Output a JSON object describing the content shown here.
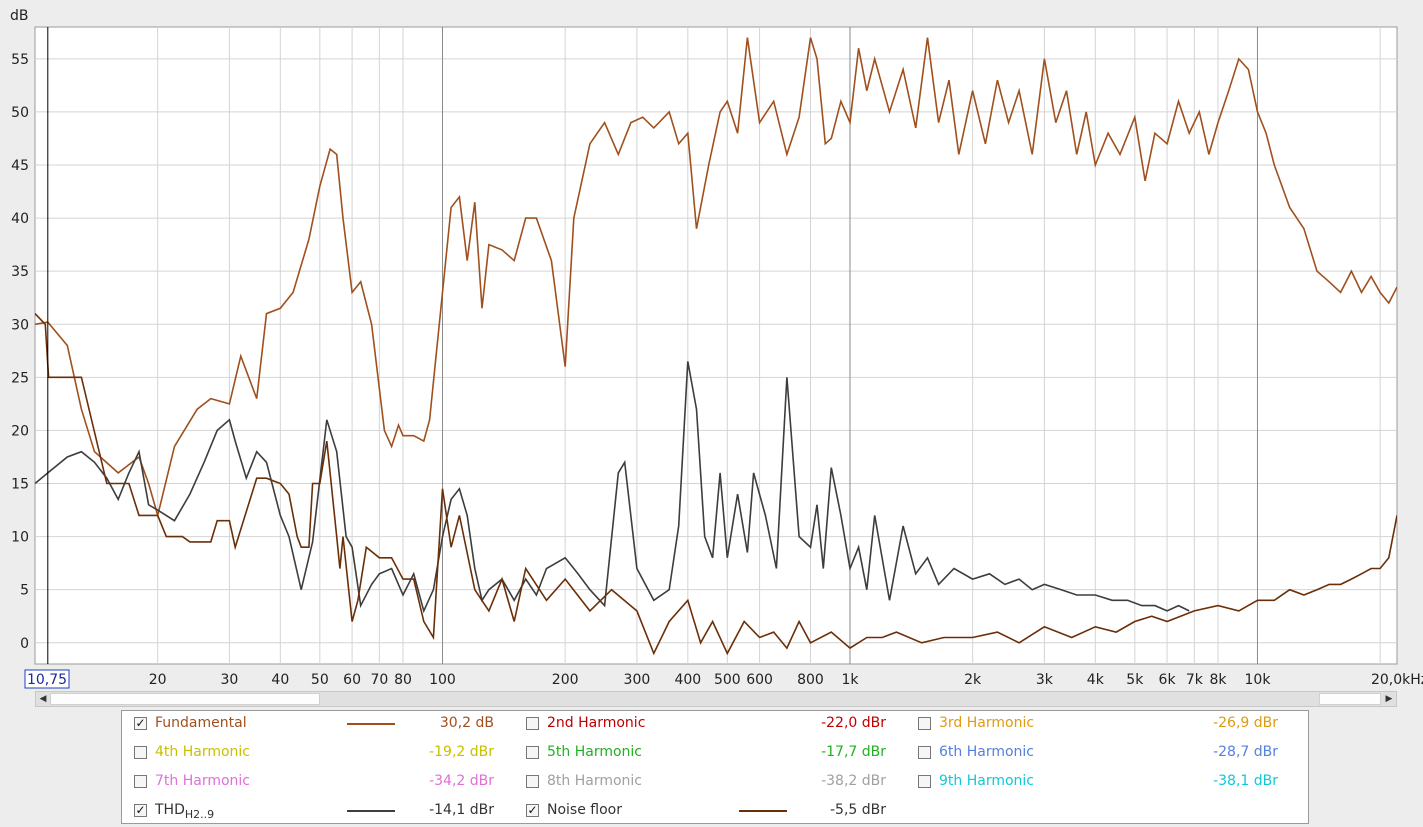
{
  "chart_data": {
    "type": "line",
    "ylabel": "dB",
    "xscale": "log",
    "xlim": [
      10,
      22000
    ],
    "ylim": [
      -2,
      58
    ],
    "x_ticks": [
      {
        "v": 20,
        "label": "20"
      },
      {
        "v": 30,
        "label": "30"
      },
      {
        "v": 40,
        "label": "40"
      },
      {
        "v": 50,
        "label": "50"
      },
      {
        "v": 60,
        "label": "60"
      },
      {
        "v": 70,
        "label": "70"
      },
      {
        "v": 80,
        "label": "80"
      },
      {
        "v": 100,
        "label": "100"
      },
      {
        "v": 200,
        "label": "200"
      },
      {
        "v": 300,
        "label": "300"
      },
      {
        "v": 400,
        "label": "400"
      },
      {
        "v": 500,
        "label": "500"
      },
      {
        "v": 600,
        "label": "600"
      },
      {
        "v": 800,
        "label": "800"
      },
      {
        "v": 1000,
        "label": "1k"
      },
      {
        "v": 2000,
        "label": "2k"
      },
      {
        "v": 3000,
        "label": "3k"
      },
      {
        "v": 4000,
        "label": "4k"
      },
      {
        "v": 5000,
        "label": "5k"
      },
      {
        "v": 6000,
        "label": "6k"
      },
      {
        "v": 7000,
        "label": "7k"
      },
      {
        "v": 8000,
        "label": "8k"
      },
      {
        "v": 10000,
        "label": "10k"
      },
      {
        "v": 20000,
        "label": "20,0kHz"
      }
    ],
    "y_ticks": [
      0,
      5,
      10,
      15,
      20,
      25,
      30,
      35,
      40,
      45,
      50,
      55
    ],
    "cursor": {
      "x": 10.75,
      "label": "10,75"
    },
    "grid": true,
    "series": [
      {
        "name": "Fundamental",
        "color": "#a0501e",
        "x": [
          10,
          10.75,
          12,
          13,
          14,
          16,
          18,
          19,
          20,
          22,
          25,
          27,
          30,
          32,
          35,
          37,
          40,
          43,
          47,
          50,
          53,
          55,
          57,
          60,
          63,
          67,
          72,
          75,
          78,
          80,
          85,
          90,
          93,
          100,
          105,
          110,
          115,
          120,
          125,
          130,
          140,
          150,
          160,
          170,
          185,
          200,
          210,
          230,
          250,
          270,
          290,
          310,
          330,
          360,
          380,
          400,
          420,
          450,
          480,
          500,
          530,
          560,
          600,
          650,
          700,
          750,
          800,
          830,
          870,
          900,
          950,
          1000,
          1050,
          1100,
          1150,
          1250,
          1350,
          1450,
          1550,
          1650,
          1750,
          1850,
          2000,
          2150,
          2300,
          2450,
          2600,
          2800,
          3000,
          3200,
          3400,
          3600,
          3800,
          4000,
          4300,
          4600,
          5000,
          5300,
          5600,
          6000,
          6400,
          6800,
          7200,
          7600,
          8000,
          8500,
          9000,
          9500,
          10000,
          10500,
          11000,
          12000,
          13000,
          14000,
          15000,
          16000,
          17000,
          18000,
          19000,
          20000,
          21000,
          22000
        ],
        "y": [
          30.0,
          30.2,
          28.0,
          22.0,
          18.0,
          16.0,
          17.5,
          15.0,
          12.0,
          18.5,
          22.0,
          23.0,
          22.5,
          27.0,
          23.0,
          31.0,
          31.5,
          33.0,
          38.0,
          43.0,
          46.5,
          46.0,
          40.0,
          33.0,
          34.0,
          30.0,
          20.0,
          18.5,
          20.5,
          19.5,
          19.5,
          19.0,
          21.0,
          33.0,
          41.0,
          42.0,
          36.0,
          41.5,
          31.5,
          37.5,
          37.0,
          36.0,
          40.0,
          40.0,
          36.0,
          26.0,
          40.0,
          47.0,
          49.0,
          46.0,
          49.0,
          49.5,
          48.5,
          50.0,
          47.0,
          48.0,
          39.0,
          45.0,
          50.0,
          51.0,
          48.0,
          57.0,
          49.0,
          51.0,
          46.0,
          49.5,
          57.0,
          55.0,
          47.0,
          47.5,
          51.0,
          49.0,
          56.0,
          52.0,
          55.0,
          50.0,
          54.0,
          48.5,
          57.0,
          49.0,
          53.0,
          46.0,
          52.0,
          47.0,
          53.0,
          49.0,
          52.0,
          46.0,
          55.0,
          49.0,
          52.0,
          46.0,
          50.0,
          45.0,
          48.0,
          46.0,
          49.5,
          43.5,
          48.0,
          47.0,
          51.0,
          48.0,
          50.0,
          46.0,
          49.0,
          52.0,
          55.0,
          54.0,
          50.0,
          48.0,
          45.0,
          41.0,
          39.0,
          35.0,
          34.0,
          33.0,
          35.0,
          33.0,
          34.5,
          33.0,
          32.0,
          33.5
        ]
      },
      {
        "name": "THD",
        "color": "#3d3d3d",
        "x": [
          10,
          10.75,
          12,
          13,
          14,
          15,
          16,
          17,
          18,
          19,
          20,
          22,
          24,
          26,
          28,
          30,
          31,
          33,
          35,
          37,
          40,
          42,
          45,
          48,
          52,
          55,
          58,
          60,
          63,
          67,
          70,
          75,
          80,
          85,
          90,
          95,
          100,
          105,
          110,
          115,
          120,
          125,
          130,
          140,
          150,
          160,
          170,
          180,
          200,
          215,
          230,
          250,
          270,
          280,
          300,
          330,
          360,
          380,
          400,
          420,
          440,
          460,
          480,
          500,
          530,
          560,
          580,
          620,
          660,
          700,
          750,
          800,
          830,
          860,
          900,
          950,
          1000,
          1050,
          1100,
          1150,
          1250,
          1350,
          1450,
          1550,
          1650,
          1800,
          2000,
          2200,
          2400,
          2600,
          2800,
          3000,
          3300,
          3600,
          4000,
          4400,
          4800,
          5200,
          5600,
          6000,
          6400,
          6800
        ],
        "y": [
          15.0,
          16.0,
          17.5,
          18.0,
          17.0,
          15.5,
          13.5,
          16.0,
          18.0,
          13.0,
          12.5,
          11.5,
          14.0,
          17.0,
          20.0,
          21.0,
          19.0,
          15.5,
          18.0,
          17.0,
          12.0,
          10.0,
          5.0,
          9.5,
          21.0,
          18.0,
          10.0,
          9.0,
          3.5,
          5.5,
          6.5,
          7.0,
          4.5,
          6.5,
          3.0,
          5.0,
          10.0,
          13.5,
          14.5,
          12.0,
          7.0,
          4.0,
          5.0,
          6.0,
          4.0,
          6.0,
          4.5,
          7.0,
          8.0,
          6.5,
          5.0,
          3.5,
          16.0,
          17.0,
          7.0,
          4.0,
          5.0,
          11.0,
          26.5,
          22.0,
          10.0,
          8.0,
          16.0,
          8.0,
          14.0,
          8.5,
          16.0,
          12.0,
          7.0,
          25.0,
          10.0,
          9.0,
          13.0,
          7.0,
          16.5,
          12.0,
          7.0,
          9.0,
          5.0,
          12.0,
          4.0,
          11.0,
          6.5,
          8.0,
          5.5,
          7.0,
          6.0,
          6.5,
          5.5,
          6.0,
          5.0,
          5.5,
          5.0,
          4.5,
          4.5,
          4.0,
          4.0,
          3.5,
          3.5,
          3.0,
          3.5,
          3.0
        ]
      },
      {
        "name": "Noise floor",
        "color": "#6b2f08",
        "x": [
          10,
          10.6,
          10.8,
          12,
          13,
          15,
          16,
          17,
          18,
          20,
          21,
          23,
          24,
          27,
          28,
          30,
          31,
          35,
          37,
          40,
          42,
          44,
          45,
          47,
          48,
          50,
          52,
          55,
          56,
          57,
          60,
          62,
          65,
          70,
          75,
          80,
          85,
          90,
          95,
          100,
          105,
          110,
          120,
          130,
          140,
          150,
          160,
          180,
          200,
          230,
          260,
          300,
          330,
          360,
          400,
          430,
          460,
          500,
          550,
          600,
          650,
          700,
          750,
          800,
          900,
          1000,
          1100,
          1200,
          1300,
          1500,
          1700,
          2000,
          2300,
          2600,
          3000,
          3500,
          4000,
          4500,
          5000,
          5500,
          6000,
          7000,
          8000,
          9000,
          10000,
          11000,
          12000,
          13000,
          14000,
          15000,
          16000,
          17000,
          18000,
          19000,
          20000,
          21000,
          22000
        ],
        "y": [
          31.0,
          30.0,
          25.0,
          25.0,
          25.0,
          15.0,
          15.0,
          15.0,
          12.0,
          12.0,
          10.0,
          10.0,
          9.5,
          9.5,
          11.5,
          11.5,
          9.0,
          15.5,
          15.5,
          15.0,
          14.0,
          10.0,
          9.0,
          9.0,
          15.0,
          15.0,
          19.0,
          10.0,
          7.0,
          10.0,
          2.0,
          4.0,
          9.0,
          8.0,
          8.0,
          6.0,
          6.0,
          2.0,
          0.5,
          14.5,
          9.0,
          12.0,
          5.0,
          3.0,
          6.0,
          2.0,
          7.0,
          4.0,
          6.0,
          3.0,
          5.0,
          3.0,
          -1.0,
          2.0,
          4.0,
          0.0,
          2.0,
          -1.0,
          2.0,
          0.5,
          1.0,
          -0.5,
          2.0,
          0.0,
          1.0,
          -0.5,
          0.5,
          0.5,
          1.0,
          0.0,
          0.5,
          0.5,
          1.0,
          0.0,
          1.5,
          0.5,
          1.5,
          1.0,
          2.0,
          2.5,
          2.0,
          3.0,
          3.5,
          3.0,
          4.0,
          4.0,
          5.0,
          4.5,
          5.0,
          5.5,
          5.5,
          6.0,
          6.5,
          7.0,
          7.0,
          8.0,
          12.0
        ]
      }
    ]
  },
  "legend": {
    "rows": [
      [
        {
          "label": "Fundamental",
          "value": "30,2 dB",
          "checked": true,
          "color": "#a0501e",
          "line": true
        },
        {
          "label": "2nd Harmonic",
          "value": "-22,0 dBr",
          "checked": false,
          "color": "#c00000",
          "line": false
        },
        {
          "label": "3rd Harmonic",
          "value": "-26,9 dBr",
          "checked": false,
          "color": "#e09a10",
          "line": false
        }
      ],
      [
        {
          "label": "4th Harmonic",
          "value": "-19,2 dBr",
          "checked": false,
          "color": "#c8c000",
          "line": false
        },
        {
          "label": "5th Harmonic",
          "value": "-17,7 dBr",
          "checked": false,
          "color": "#22b022",
          "line": false
        },
        {
          "label": "6th Harmonic",
          "value": "-28,7 dBr",
          "checked": false,
          "color": "#5580e0",
          "line": false
        }
      ],
      [
        {
          "label": "7th Harmonic",
          "value": "-34,2 dBr",
          "checked": false,
          "color": "#e070d8",
          "line": false
        },
        {
          "label": "8th Harmonic",
          "value": "-38,2 dBr",
          "checked": false,
          "color": "#a0a0a0",
          "line": false
        },
        {
          "label": "9th Harmonic",
          "value": "-38,1 dBr",
          "checked": false,
          "color": "#10c8d8",
          "line": false
        }
      ],
      [
        {
          "label": "THD",
          "sub": "H2..9",
          "value": "-14,1 dBr",
          "checked": true,
          "color": "#3d3d3d",
          "line": true
        },
        {
          "label": "Noise floor",
          "value": "-5,5 dBr",
          "checked": true,
          "color": "#6b2f08",
          "line": true
        }
      ]
    ]
  }
}
